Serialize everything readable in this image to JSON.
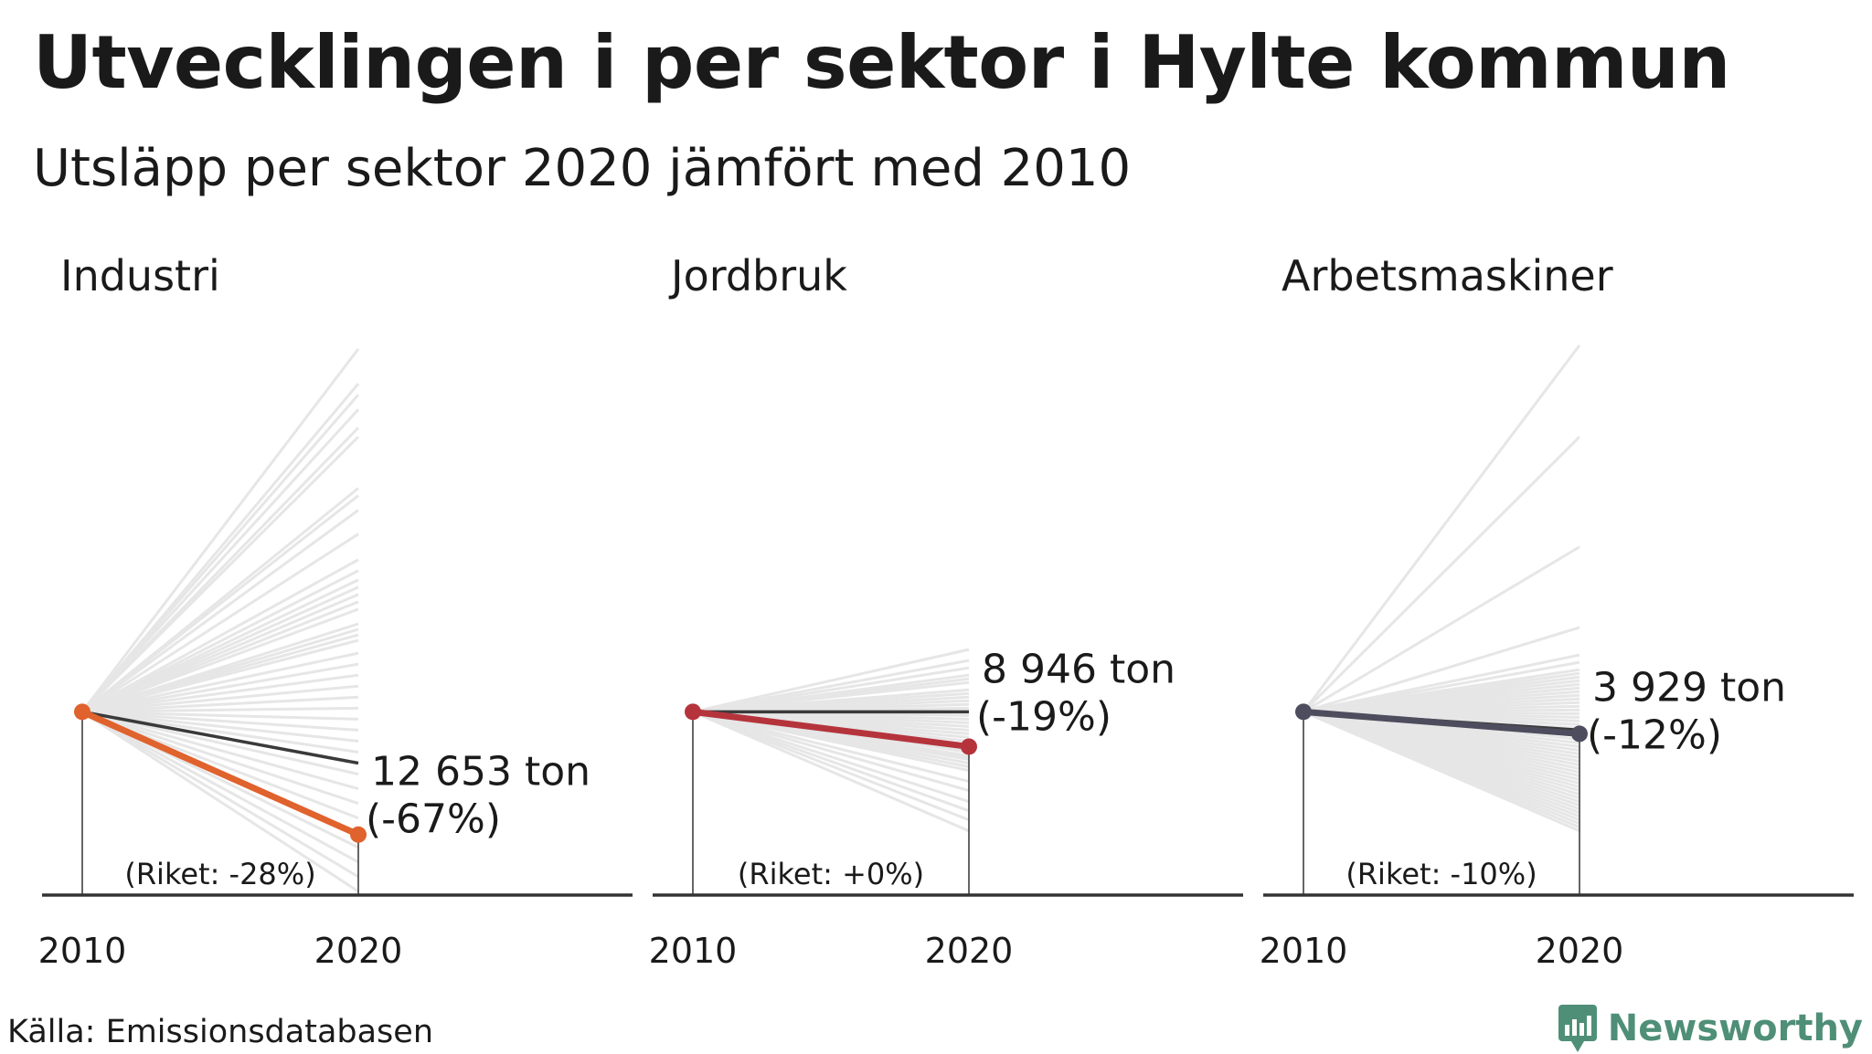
{
  "title": "Utvecklingen i per sektor i Hylte kommun",
  "subtitle": "Utsläpp per sektor 2020 jämfört med 2010",
  "source": "Källa: Emissionsdatabasen",
  "brand": "Newsworthy",
  "colors": {
    "background_lines": "#e6e6e6",
    "national_line": "#3a3a3a",
    "axis": "#333333"
  },
  "chart_data": [
    {
      "type": "line",
      "title": "Industri",
      "x": [
        "2010",
        "2020"
      ],
      "highlight": {
        "values": [
          100,
          33
        ],
        "color": "#e0622d"
      },
      "national": {
        "label": "(Riket: -28%)",
        "values": [
          100,
          72
        ]
      },
      "value_label": "12 653 ton",
      "change_label": "(-67%)",
      "background_end_values": [
        298,
        279,
        273,
        265,
        255,
        250,
        222,
        218,
        210,
        197,
        183,
        177,
        172,
        168,
        164,
        160,
        156,
        148,
        145,
        142,
        139,
        132,
        126,
        120,
        114,
        108,
        102,
        96,
        90,
        84,
        78,
        72,
        66,
        58,
        50,
        42,
        34,
        26,
        18,
        10,
        2
      ],
      "ylim": [
        0,
        300
      ]
    },
    {
      "type": "line",
      "title": "Jordbruk",
      "x": [
        "2010",
        "2020"
      ],
      "highlight": {
        "values": [
          100,
          81
        ],
        "color": "#b5343c"
      },
      "national": {
        "label": "(Riket: +0%)",
        "values": [
          100,
          100
        ]
      },
      "value_label": "8 946 ton",
      "change_label": "(-19%)",
      "background_end_values": [
        134,
        128,
        124,
        120,
        118,
        116,
        112,
        110,
        108,
        106,
        104,
        102,
        100,
        98,
        96,
        94,
        92,
        90,
        88,
        86,
        84,
        82,
        80,
        79,
        78,
        76,
        75,
        74,
        72,
        70,
        68,
        62,
        57,
        51,
        46,
        41,
        35
      ],
      "ylim": [
        0,
        300
      ]
    },
    {
      "type": "line",
      "title": "Arbetsmaskiner",
      "x": [
        "2010",
        "2020"
      ],
      "highlight": {
        "values": [
          100,
          88
        ],
        "color": "#4d4d5e"
      },
      "national": {
        "label": "(Riket: -10%)",
        "values": [
          100,
          90
        ]
      },
      "value_label": "3 929 ton",
      "change_label": "(-12%)",
      "background_end_values": [
        300,
        250,
        190,
        146,
        131,
        127,
        123,
        121,
        119,
        117,
        115,
        113,
        111,
        109,
        107,
        105,
        103,
        101,
        99,
        97,
        95,
        93,
        91,
        89,
        87,
        85,
        83,
        81,
        79,
        77,
        75,
        73,
        71,
        69,
        67,
        65,
        63,
        61,
        59,
        57,
        55,
        53,
        51,
        49,
        47,
        45,
        43,
        41,
        39,
        37,
        35
      ],
      "ylim": [
        0,
        300
      ]
    }
  ]
}
